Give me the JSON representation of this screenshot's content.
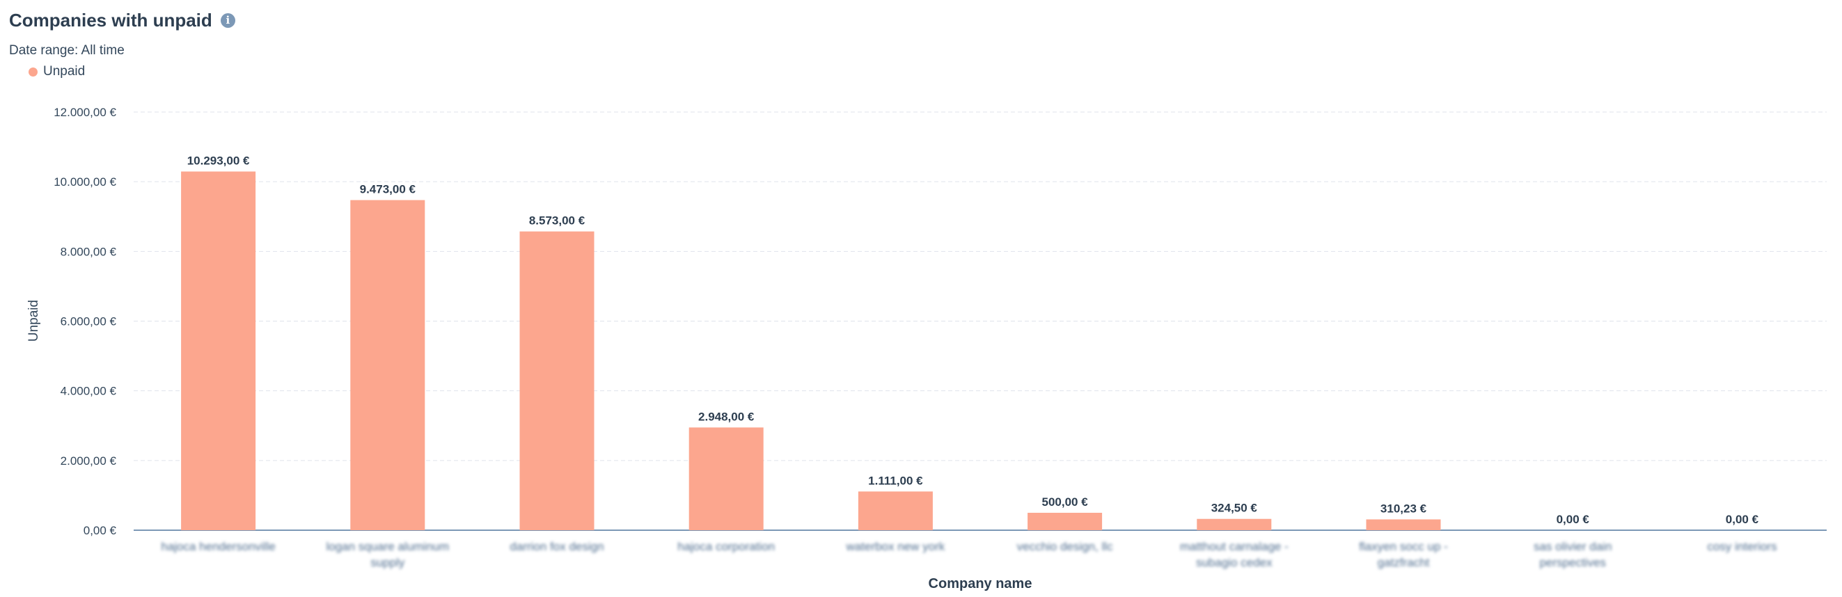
{
  "header": {
    "title": "Companies with unpaid",
    "info_icon": "info-icon",
    "date_range": "Date range: All time"
  },
  "legend": {
    "items": [
      {
        "label": "Unpaid",
        "color": "#fca68e"
      }
    ]
  },
  "colors": {
    "bar": "#fca68e",
    "grid": "#dfe3eb",
    "axis": "#7c98b6",
    "text": "#33475b"
  },
  "chart_data": {
    "type": "bar",
    "title": "Companies with unpaid",
    "xlabel": "Company name",
    "ylabel": "Unpaid",
    "ylim": [
      0,
      12000
    ],
    "yticks": [
      0,
      2000,
      4000,
      6000,
      8000,
      10000,
      12000
    ],
    "ytick_labels": [
      "0,00 €",
      "2.000,00 €",
      "4.000,00 €",
      "6.000,00 €",
      "8.000,00 €",
      "10.000,00 €",
      "12.000,00 €"
    ],
    "grid": true,
    "legend_position": "top-left",
    "categories": [
      [
        "hajoca hendersonville"
      ],
      [
        "logan square aluminum",
        "supply"
      ],
      [
        "darrion fox design"
      ],
      [
        "hajoca corporation"
      ],
      [
        "waterbox new york"
      ],
      [
        "vecchio design, llc"
      ],
      [
        "matthout carnalage -",
        "subagio cedex"
      ],
      [
        "flaxyen socc up -",
        "gatzfracht"
      ],
      [
        "sas olivier dain",
        "perspectives"
      ],
      [
        "cosy interiors"
      ]
    ],
    "series": [
      {
        "name": "Unpaid",
        "values": [
          10293,
          9473,
          8573,
          2948,
          1111,
          500,
          324.5,
          310.23,
          0,
          0
        ],
        "labels": [
          "10.293,00 €",
          "9.473,00 €",
          "8.573,00 €",
          "2.948,00 €",
          "1.111,00 €",
          "500,00 €",
          "324,50 €",
          "310,23 €",
          "0,00 €",
          "0,00 €"
        ]
      }
    ]
  }
}
